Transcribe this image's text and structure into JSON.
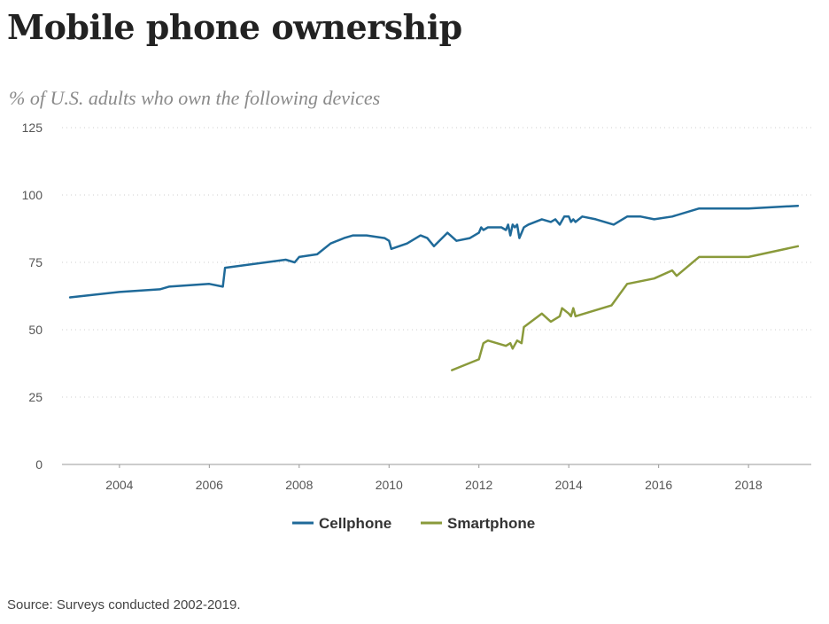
{
  "page": {
    "title": "Mobile phone ownership",
    "subtitle": "% of U.S. adults who own the following devices",
    "source": "Source: Surveys conducted 2002-2019."
  },
  "chart_data": {
    "type": "line",
    "title": "Mobile phone ownership",
    "subtitle": "% of U.S. adults who own the following devices",
    "xlabel": "",
    "ylabel": "",
    "xlim": [
      2002.8,
      2019.2
    ],
    "ylim": [
      0,
      125
    ],
    "x_ticks": [
      "2004",
      "2006",
      "2008",
      "2010",
      "2012",
      "2014",
      "2016",
      "2018"
    ],
    "y_ticks": [
      "0",
      "25",
      "50",
      "75",
      "100",
      "125"
    ],
    "grid": "horizontal dotted",
    "legend_position": "bottom-center",
    "series": [
      {
        "name": "Cellphone",
        "color": "#1f6a99",
        "points": [
          [
            2002.9,
            62
          ],
          [
            2004.0,
            64
          ],
          [
            2004.9,
            65
          ],
          [
            2005.1,
            66
          ],
          [
            2006.0,
            67
          ],
          [
            2006.3,
            66
          ],
          [
            2006.35,
            73
          ],
          [
            2007.7,
            76
          ],
          [
            2007.9,
            75
          ],
          [
            2008.0,
            77
          ],
          [
            2008.4,
            78
          ],
          [
            2008.7,
            82
          ],
          [
            2009.0,
            84
          ],
          [
            2009.2,
            85
          ],
          [
            2009.5,
            85
          ],
          [
            2009.9,
            84
          ],
          [
            2010.0,
            83
          ],
          [
            2010.05,
            80
          ],
          [
            2010.4,
            82
          ],
          [
            2010.7,
            85
          ],
          [
            2010.85,
            84
          ],
          [
            2011.0,
            81
          ],
          [
            2011.3,
            86
          ],
          [
            2011.5,
            83
          ],
          [
            2011.8,
            84
          ],
          [
            2012.0,
            86
          ],
          [
            2012.05,
            88
          ],
          [
            2012.1,
            87
          ],
          [
            2012.2,
            88
          ],
          [
            2012.5,
            88
          ],
          [
            2012.6,
            87
          ],
          [
            2012.65,
            89
          ],
          [
            2012.7,
            85
          ],
          [
            2012.75,
            89
          ],
          [
            2012.8,
            88
          ],
          [
            2012.85,
            89
          ],
          [
            2012.9,
            84
          ],
          [
            2013.0,
            88
          ],
          [
            2013.1,
            89
          ],
          [
            2013.4,
            91
          ],
          [
            2013.6,
            90
          ],
          [
            2013.7,
            91
          ],
          [
            2013.8,
            89
          ],
          [
            2013.9,
            92
          ],
          [
            2014.0,
            92
          ],
          [
            2014.05,
            90
          ],
          [
            2014.1,
            91
          ],
          [
            2014.15,
            90
          ],
          [
            2014.3,
            92
          ],
          [
            2014.6,
            91
          ],
          [
            2014.8,
            90
          ],
          [
            2015.0,
            89
          ],
          [
            2015.3,
            92
          ],
          [
            2015.6,
            92
          ],
          [
            2015.9,
            91
          ],
          [
            2016.3,
            92
          ],
          [
            2016.9,
            95
          ],
          [
            2018.0,
            95
          ],
          [
            2019.1,
            96
          ]
        ]
      },
      {
        "name": "Smartphone",
        "color": "#8a9a3b",
        "points": [
          [
            2011.4,
            35
          ],
          [
            2012.0,
            39
          ],
          [
            2012.1,
            45
          ],
          [
            2012.2,
            46
          ],
          [
            2012.6,
            44
          ],
          [
            2012.7,
            45
          ],
          [
            2012.75,
            43
          ],
          [
            2012.85,
            46
          ],
          [
            2012.95,
            45
          ],
          [
            2013.0,
            51
          ],
          [
            2013.4,
            56
          ],
          [
            2013.6,
            53
          ],
          [
            2013.8,
            55
          ],
          [
            2013.85,
            58
          ],
          [
            2014.0,
            56
          ],
          [
            2014.05,
            55
          ],
          [
            2014.1,
            58
          ],
          [
            2014.15,
            55
          ],
          [
            2014.95,
            59
          ],
          [
            2015.3,
            67
          ],
          [
            2015.9,
            69
          ],
          [
            2016.3,
            72
          ],
          [
            2016.4,
            70
          ],
          [
            2016.9,
            77
          ],
          [
            2018.0,
            77
          ],
          [
            2019.1,
            81
          ]
        ]
      }
    ]
  }
}
